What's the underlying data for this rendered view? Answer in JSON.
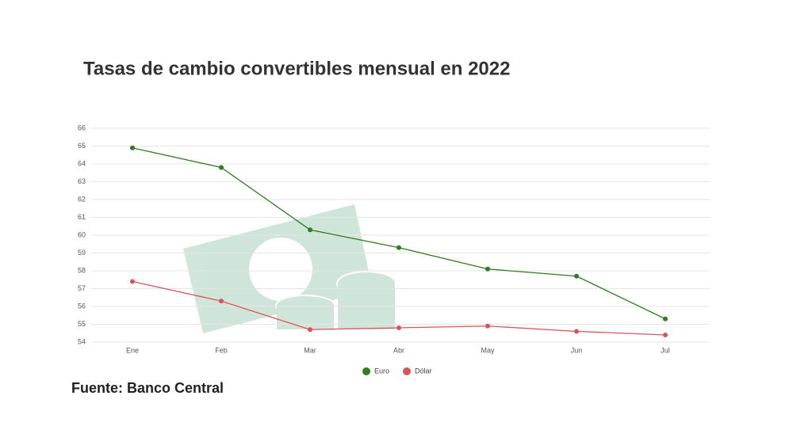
{
  "chart_data": {
    "type": "line",
    "title": "Tasas de cambio convertibles mensual en 2022",
    "source": "Fuente: Banco Central",
    "categories": [
      "Ene",
      "Feb",
      "Mar",
      "Abr",
      "May",
      "Jun",
      "Jul"
    ],
    "series": [
      {
        "name": "Euro",
        "color": "#2e7d1e",
        "values": [
          64.9,
          63.8,
          60.3,
          59.3,
          58.1,
          57.7,
          55.3
        ]
      },
      {
        "name": "Dólar",
        "color": "#d9545b",
        "values": [
          57.4,
          56.3,
          54.7,
          54.8,
          54.9,
          54.6,
          54.4
        ]
      }
    ],
    "ylim": [
      54,
      66
    ],
    "yticks": [
      54,
      55,
      56,
      57,
      58,
      59,
      60,
      61,
      62,
      63,
      64,
      65,
      66
    ],
    "grid": true,
    "legend": "bottom"
  }
}
